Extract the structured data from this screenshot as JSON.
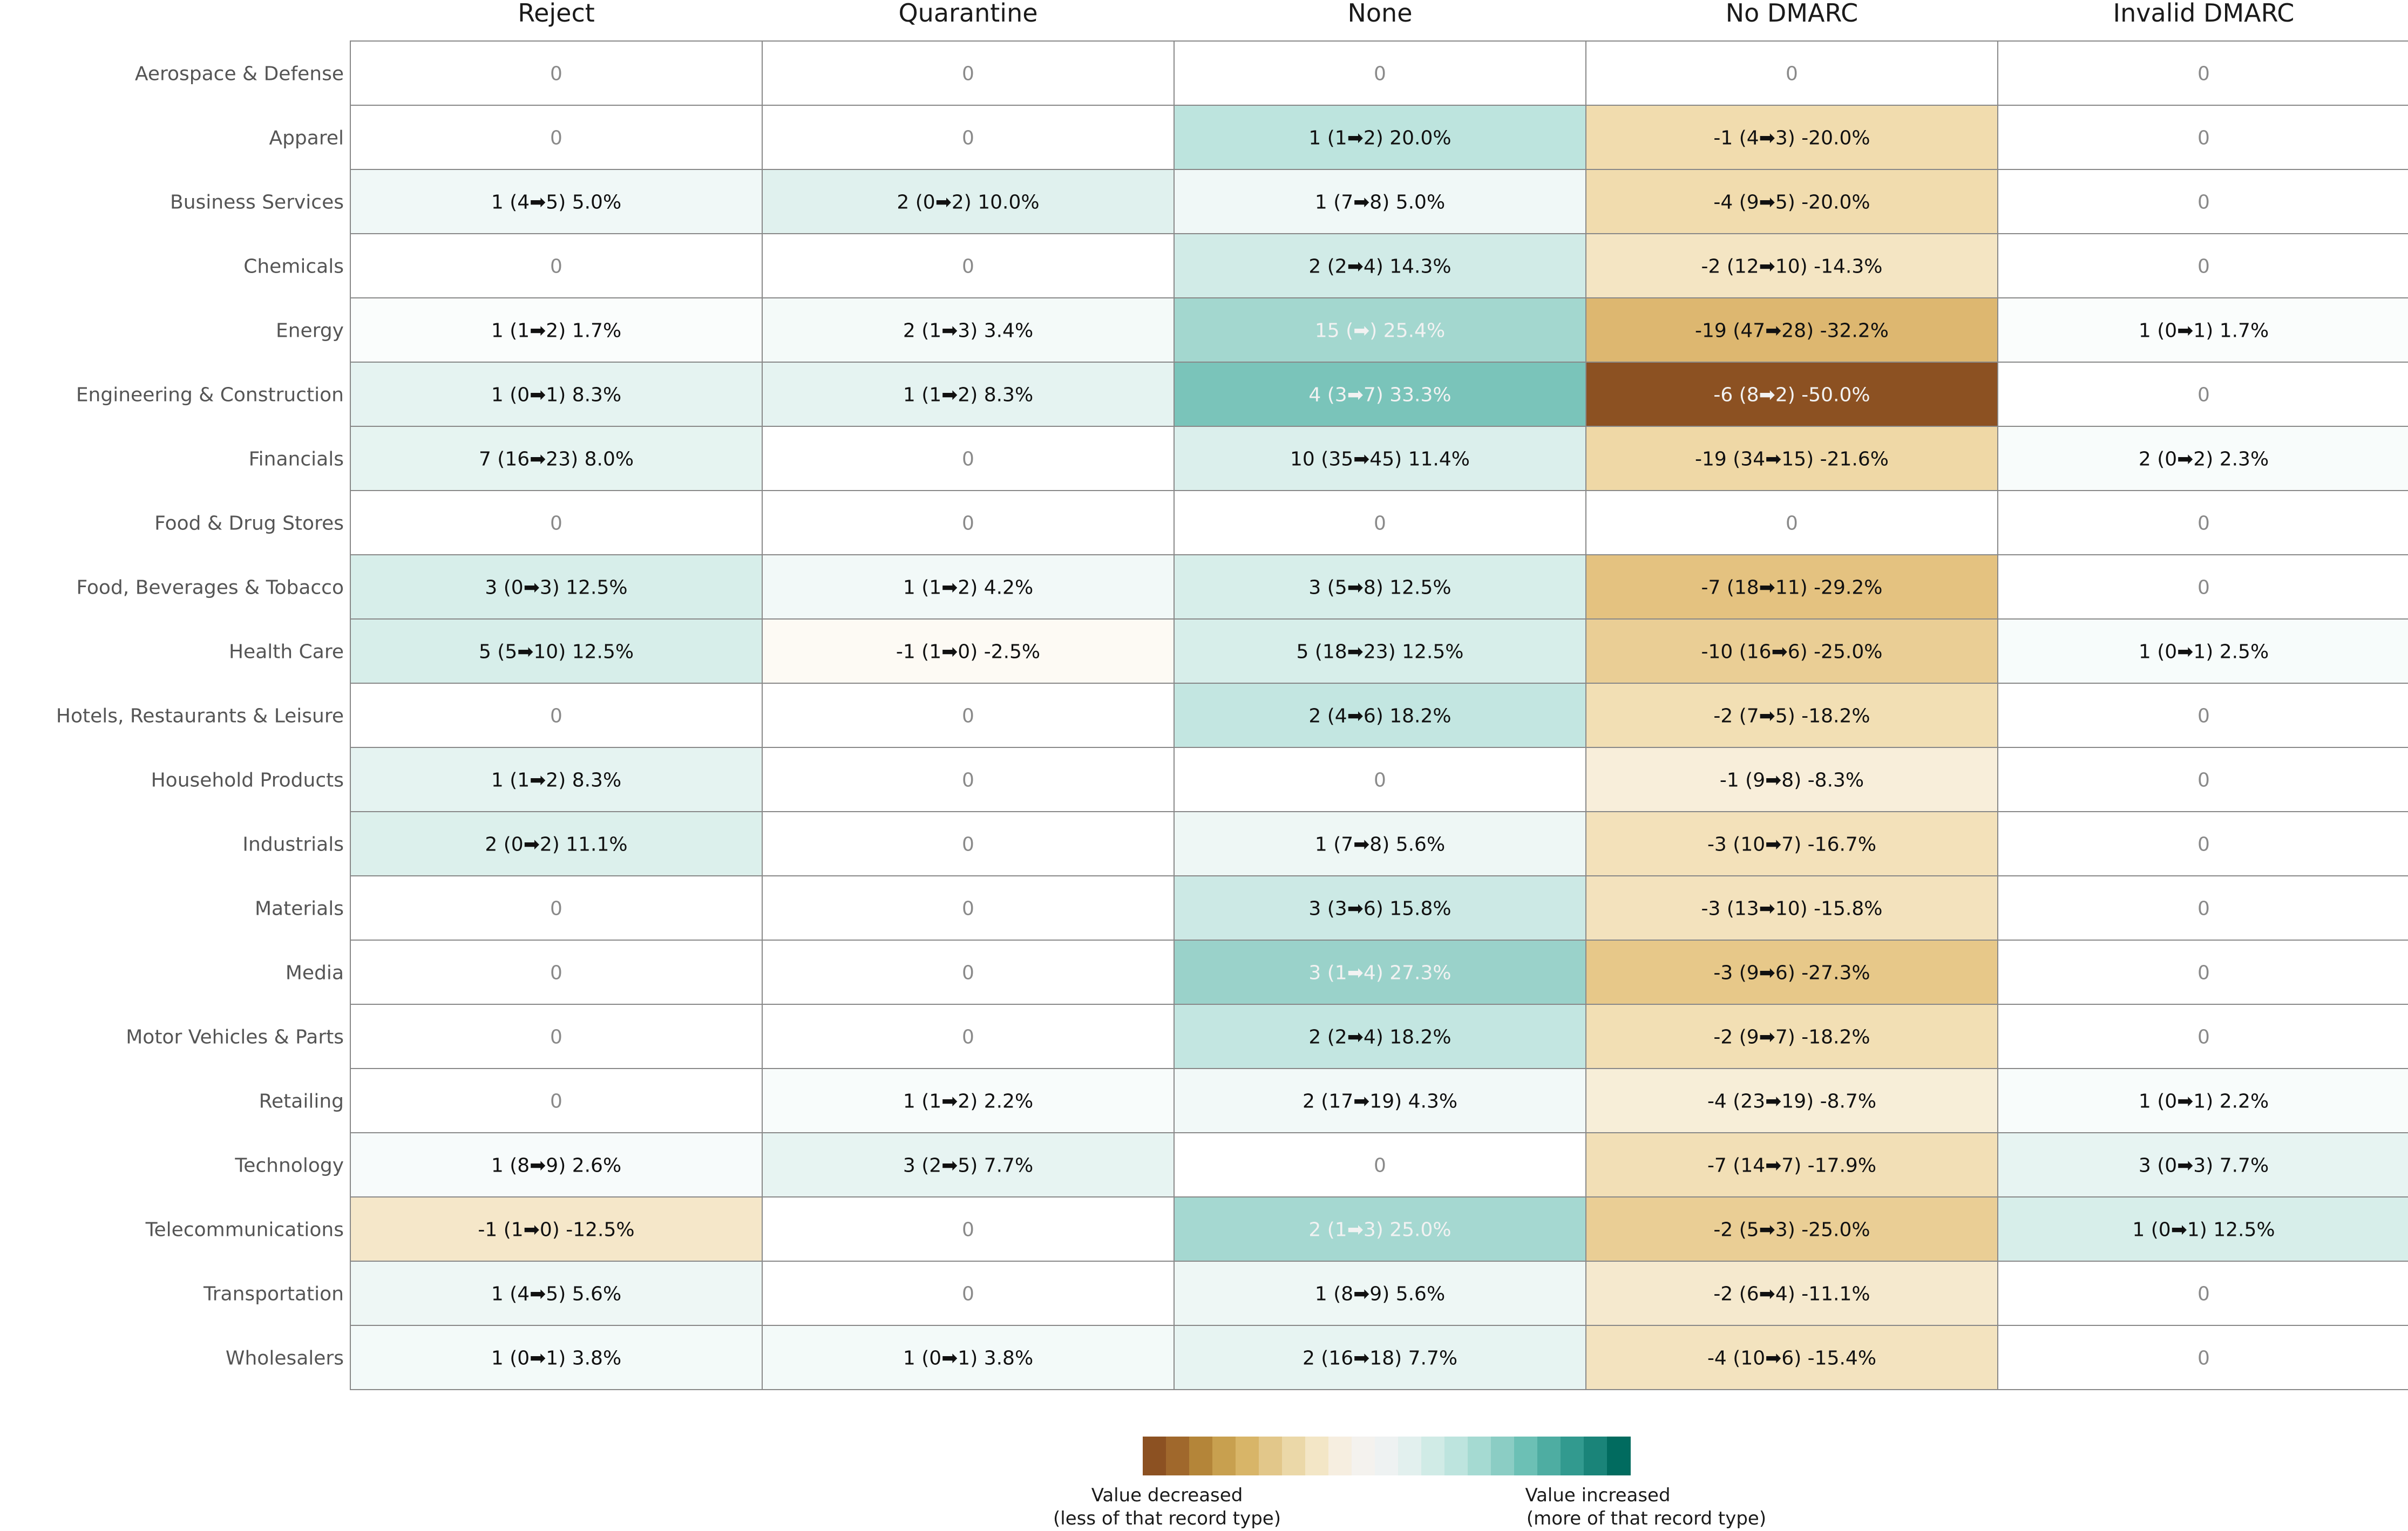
{
  "chart_data": {
    "type": "heatmap",
    "columns": [
      "Reject",
      "Quarantine",
      "None",
      "No DMARC",
      "Invalid DMARC"
    ],
    "rows": [
      {
        "label": "Aerospace & Defense",
        "cells": [
          {
            "text": "0",
            "value": 0
          },
          {
            "text": "0",
            "value": 0
          },
          {
            "text": "0",
            "value": 0
          },
          {
            "text": "0",
            "value": 0
          },
          {
            "text": "0",
            "value": 0
          }
        ]
      },
      {
        "label": "Apparel",
        "cells": [
          {
            "text": "0",
            "value": 0
          },
          {
            "text": "0",
            "value": 0
          },
          {
            "text": "1 (1➡2) 20.0%",
            "value": 20.0
          },
          {
            "text": "-1 (4➡3) -20.0%",
            "value": -20.0
          },
          {
            "text": "0",
            "value": 0
          }
        ]
      },
      {
        "label": "Business Services",
        "cells": [
          {
            "text": "1 (4➡5) 5.0%",
            "value": 5.0
          },
          {
            "text": "2 (0➡2) 10.0%",
            "value": 10.0
          },
          {
            "text": "1 (7➡8) 5.0%",
            "value": 5.0
          },
          {
            "text": "-4 (9➡5) -20.0%",
            "value": -20.0
          },
          {
            "text": "0",
            "value": 0
          }
        ]
      },
      {
        "label": "Chemicals",
        "cells": [
          {
            "text": "0",
            "value": 0
          },
          {
            "text": "0",
            "value": 0
          },
          {
            "text": "2 (2➡4) 14.3%",
            "value": 14.3
          },
          {
            "text": "-2 (12➡10) -14.3%",
            "value": -14.3
          },
          {
            "text": "0",
            "value": 0
          }
        ]
      },
      {
        "label": "Energy",
        "cells": [
          {
            "text": "1 (1➡2) 1.7%",
            "value": 1.7
          },
          {
            "text": "2 (1➡3) 3.4%",
            "value": 3.4
          },
          {
            "text": "15 (➡) 25.4%",
            "value": 25.4
          },
          {
            "text": "-19 (47➡28) -32.2%",
            "value": -32.2
          },
          {
            "text": "1 (0➡1) 1.7%",
            "value": 1.7
          }
        ]
      },
      {
        "label": "Engineering & Construction",
        "cells": [
          {
            "text": "1 (0➡1) 8.3%",
            "value": 8.3
          },
          {
            "text": "1 (1➡2) 8.3%",
            "value": 8.3
          },
          {
            "text": "4 (3➡7) 33.3%",
            "value": 33.3
          },
          {
            "text": "-6 (8➡2) -50.0%",
            "value": -50.0
          },
          {
            "text": "0",
            "value": 0
          }
        ]
      },
      {
        "label": "Financials",
        "cells": [
          {
            "text": "7 (16➡23) 8.0%",
            "value": 8.0
          },
          {
            "text": "0",
            "value": 0
          },
          {
            "text": "10 (35➡45) 11.4%",
            "value": 11.4
          },
          {
            "text": "-19 (34➡15) -21.6%",
            "value": -21.6
          },
          {
            "text": "2 (0➡2) 2.3%",
            "value": 2.3
          }
        ]
      },
      {
        "label": "Food & Drug Stores",
        "cells": [
          {
            "text": "0",
            "value": 0
          },
          {
            "text": "0",
            "value": 0
          },
          {
            "text": "0",
            "value": 0
          },
          {
            "text": "0",
            "value": 0
          },
          {
            "text": "0",
            "value": 0
          }
        ]
      },
      {
        "label": "Food, Beverages & Tobacco",
        "cells": [
          {
            "text": "3 (0➡3) 12.5%",
            "value": 12.5
          },
          {
            "text": "1 (1➡2) 4.2%",
            "value": 4.2
          },
          {
            "text": "3 (5➡8) 12.5%",
            "value": 12.5
          },
          {
            "text": "-7 (18➡11) -29.2%",
            "value": -29.2
          },
          {
            "text": "0",
            "value": 0
          }
        ]
      },
      {
        "label": "Health Care",
        "cells": [
          {
            "text": "5 (5➡10) 12.5%",
            "value": 12.5
          },
          {
            "text": "-1 (1➡0) -2.5%",
            "value": -2.5
          },
          {
            "text": "5 (18➡23) 12.5%",
            "value": 12.5
          },
          {
            "text": "-10 (16➡6) -25.0%",
            "value": -25.0
          },
          {
            "text": "1 (0➡1) 2.5%",
            "value": 2.5
          }
        ]
      },
      {
        "label": "Hotels, Restaurants & Leisure",
        "cells": [
          {
            "text": "0",
            "value": 0
          },
          {
            "text": "0",
            "value": 0
          },
          {
            "text": "2 (4➡6) 18.2%",
            "value": 18.2
          },
          {
            "text": "-2 (7➡5) -18.2%",
            "value": -18.2
          },
          {
            "text": "0",
            "value": 0
          }
        ]
      },
      {
        "label": "Household Products",
        "cells": [
          {
            "text": "1 (1➡2) 8.3%",
            "value": 8.3
          },
          {
            "text": "0",
            "value": 0
          },
          {
            "text": "0",
            "value": 0
          },
          {
            "text": "-1 (9➡8) -8.3%",
            "value": -8.3
          },
          {
            "text": "0",
            "value": 0
          }
        ]
      },
      {
        "label": "Industrials",
        "cells": [
          {
            "text": "2 (0➡2) 11.1%",
            "value": 11.1
          },
          {
            "text": "0",
            "value": 0
          },
          {
            "text": "1 (7➡8) 5.6%",
            "value": 5.6
          },
          {
            "text": "-3 (10➡7) -16.7%",
            "value": -16.7
          },
          {
            "text": "0",
            "value": 0
          }
        ]
      },
      {
        "label": "Materials",
        "cells": [
          {
            "text": "0",
            "value": 0
          },
          {
            "text": "0",
            "value": 0
          },
          {
            "text": "3 (3➡6) 15.8%",
            "value": 15.8
          },
          {
            "text": "-3 (13➡10) -15.8%",
            "value": -15.8
          },
          {
            "text": "0",
            "value": 0
          }
        ]
      },
      {
        "label": "Media",
        "cells": [
          {
            "text": "0",
            "value": 0
          },
          {
            "text": "0",
            "value": 0
          },
          {
            "text": "3 (1➡4) 27.3%",
            "value": 27.3
          },
          {
            "text": "-3 (9➡6) -27.3%",
            "value": -27.3
          },
          {
            "text": "0",
            "value": 0
          }
        ]
      },
      {
        "label": "Motor Vehicles & Parts",
        "cells": [
          {
            "text": "0",
            "value": 0
          },
          {
            "text": "0",
            "value": 0
          },
          {
            "text": "2 (2➡4) 18.2%",
            "value": 18.2
          },
          {
            "text": "-2 (9➡7) -18.2%",
            "value": -18.2
          },
          {
            "text": "0",
            "value": 0
          }
        ]
      },
      {
        "label": "Retailing",
        "cells": [
          {
            "text": "0",
            "value": 0
          },
          {
            "text": "1 (1➡2) 2.2%",
            "value": 2.2
          },
          {
            "text": "2 (17➡19) 4.3%",
            "value": 4.3
          },
          {
            "text": "-4 (23➡19) -8.7%",
            "value": -8.7
          },
          {
            "text": "1 (0➡1) 2.2%",
            "value": 2.2
          }
        ]
      },
      {
        "label": "Technology",
        "cells": [
          {
            "text": "1 (8➡9) 2.6%",
            "value": 2.6
          },
          {
            "text": "3 (2➡5) 7.7%",
            "value": 7.7
          },
          {
            "text": "0",
            "value": 0
          },
          {
            "text": "-7 (14➡7) -17.9%",
            "value": -17.9
          },
          {
            "text": "3 (0➡3) 7.7%",
            "value": 7.7
          }
        ]
      },
      {
        "label": "Telecommunications",
        "cells": [
          {
            "text": "-1 (1➡0) -12.5%",
            "value": -12.5
          },
          {
            "text": "0",
            "value": 0
          },
          {
            "text": "2 (1➡3) 25.0%",
            "value": 25.0
          },
          {
            "text": "-2 (5➡3) -25.0%",
            "value": -25.0
          },
          {
            "text": "1 (0➡1) 12.5%",
            "value": 12.5
          }
        ]
      },
      {
        "label": "Transportation",
        "cells": [
          {
            "text": "1 (4➡5) 5.6%",
            "value": 5.6
          },
          {
            "text": "0",
            "value": 0
          },
          {
            "text": "1 (8➡9) 5.6%",
            "value": 5.6
          },
          {
            "text": "-2 (6➡4) -11.1%",
            "value": -11.1
          },
          {
            "text": "0",
            "value": 0
          }
        ]
      },
      {
        "label": "Wholesalers",
        "cells": [
          {
            "text": "1 (0➡1) 3.8%",
            "value": 3.8
          },
          {
            "text": "1 (0➡1) 3.8%",
            "value": 3.8
          },
          {
            "text": "2 (16➡18) 7.7%",
            "value": 7.7
          },
          {
            "text": "-4 (10➡6) -15.4%",
            "value": -15.4
          },
          {
            "text": "0",
            "value": 0
          }
        ]
      }
    ],
    "color_range": [
      -50,
      50
    ],
    "legend": {
      "position": "bottom-center",
      "colors": [
        "#8c5122",
        "#a0682c",
        "#b48539",
        "#c8a04f",
        "#d8b568",
        "#e2c78a",
        "#ebd8a8",
        "#f3e6c6",
        "#f6eee0",
        "#f4f2ee",
        "#eef2f2",
        "#e2f0ee",
        "#d0ebe6",
        "#bde4de",
        "#a5dad2",
        "#8bcdc4",
        "#6cc0b5",
        "#4eada2",
        "#329a8f",
        "#1a8479",
        "#016b5f"
      ],
      "decreased_label": [
        "Value decreased",
        "(less of that record type)"
      ],
      "increased_label": [
        "Value increased",
        "(more of that record type)"
      ]
    }
  }
}
